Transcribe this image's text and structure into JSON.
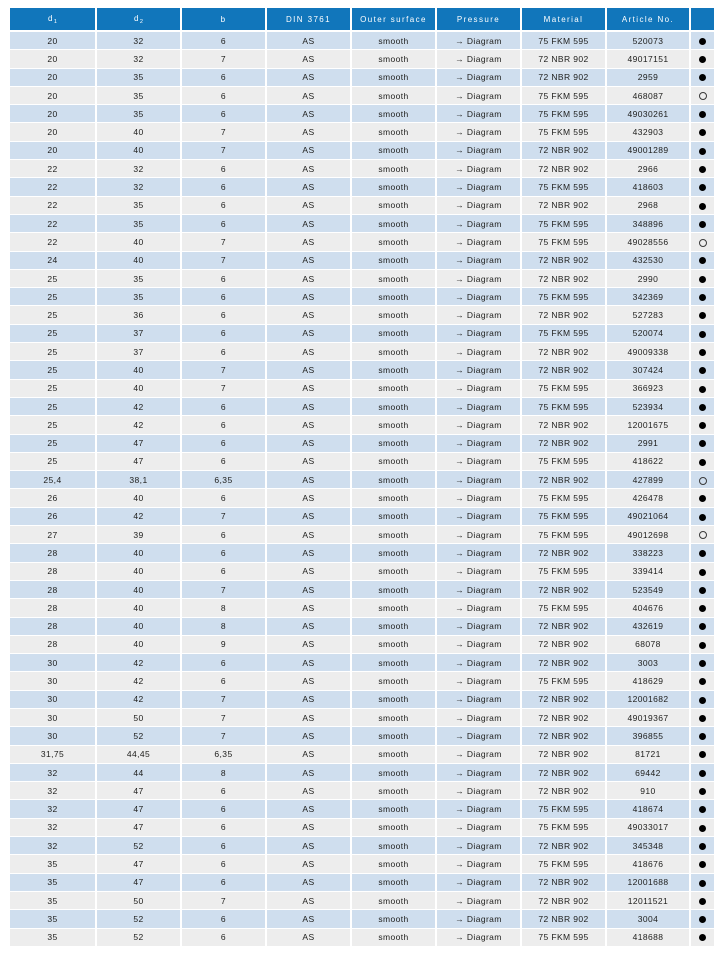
{
  "colors": {
    "page_bg": "#ffffff",
    "header_bg": "#1176bb",
    "header_text": "#ffffff",
    "row_blue": "#cfdeee",
    "row_gray": "#ededed",
    "cell_text": "#1d1d1b",
    "dot": "#000000"
  },
  "table": {
    "columns": [
      {
        "id": "d1",
        "text": "d",
        "sub": "1"
      },
      {
        "id": "d2",
        "text": "d",
        "sub": "2"
      },
      {
        "id": "b",
        "text": "b",
        "sub": ""
      },
      {
        "id": "din",
        "text": "DIN 3761",
        "sub": ""
      },
      {
        "id": "surface",
        "text": "Outer surface",
        "sub": ""
      },
      {
        "id": "pressure",
        "text": "Pressure",
        "sub": ""
      },
      {
        "id": "material",
        "text": "Material",
        "sub": ""
      },
      {
        "id": "article",
        "text": "Article No.",
        "sub": ""
      },
      {
        "id": "availability",
        "text": "",
        "sub": ""
      }
    ],
    "status_glyphs": {
      "filled": "●",
      "empty": "○"
    },
    "rows": [
      [
        "20",
        "32",
        "6",
        "AS",
        "smooth",
        "→ Diagram",
        "75 FKM 595",
        "520073",
        "filled"
      ],
      [
        "20",
        "32",
        "7",
        "AS",
        "smooth",
        "→ Diagram",
        "72 NBR 902",
        "49017151",
        "filled"
      ],
      [
        "20",
        "35",
        "6",
        "AS",
        "smooth",
        "→ Diagram",
        "72 NBR 902",
        "2959",
        "filled"
      ],
      [
        "20",
        "35",
        "6",
        "AS",
        "smooth",
        "→ Diagram",
        "75 FKM 595",
        "468087",
        "empty"
      ],
      [
        "20",
        "35",
        "6",
        "AS",
        "smooth",
        "→ Diagram",
        "75 FKM 595",
        "49030261",
        "filled"
      ],
      [
        "20",
        "40",
        "7",
        "AS",
        "smooth",
        "→ Diagram",
        "75 FKM 595",
        "432903",
        "filled"
      ],
      [
        "20",
        "40",
        "7",
        "AS",
        "smooth",
        "→ Diagram",
        "72 NBR 902",
        "49001289",
        "filled"
      ],
      [
        "22",
        "32",
        "6",
        "AS",
        "smooth",
        "→ Diagram",
        "72 NBR 902",
        "2966",
        "filled"
      ],
      [
        "22",
        "32",
        "6",
        "AS",
        "smooth",
        "→ Diagram",
        "75 FKM 595",
        "418603",
        "filled"
      ],
      [
        "22",
        "35",
        "6",
        "AS",
        "smooth",
        "→ Diagram",
        "72 NBR 902",
        "2968",
        "filled"
      ],
      [
        "22",
        "35",
        "6",
        "AS",
        "smooth",
        "→ Diagram",
        "75 FKM 595",
        "348896",
        "filled"
      ],
      [
        "22",
        "40",
        "7",
        "AS",
        "smooth",
        "→ Diagram",
        "75 FKM 595",
        "49028556",
        "empty"
      ],
      [
        "24",
        "40",
        "7",
        "AS",
        "smooth",
        "→ Diagram",
        "72 NBR 902",
        "432530",
        "filled"
      ],
      [
        "25",
        "35",
        "6",
        "AS",
        "smooth",
        "→ Diagram",
        "72 NBR 902",
        "2990",
        "filled"
      ],
      [
        "25",
        "35",
        "6",
        "AS",
        "smooth",
        "→ Diagram",
        "75 FKM 595",
        "342369",
        "filled"
      ],
      [
        "25",
        "36",
        "6",
        "AS",
        "smooth",
        "→ Diagram",
        "72 NBR 902",
        "527283",
        "filled"
      ],
      [
        "25",
        "37",
        "6",
        "AS",
        "smooth",
        "→ Diagram",
        "75 FKM 595",
        "520074",
        "filled"
      ],
      [
        "25",
        "37",
        "6",
        "AS",
        "smooth",
        "→ Diagram",
        "72 NBR 902",
        "49009338",
        "filled"
      ],
      [
        "25",
        "40",
        "7",
        "AS",
        "smooth",
        "→ Diagram",
        "72 NBR 902",
        "307424",
        "filled"
      ],
      [
        "25",
        "40",
        "7",
        "AS",
        "smooth",
        "→ Diagram",
        "75 FKM 595",
        "366923",
        "filled"
      ],
      [
        "25",
        "42",
        "6",
        "AS",
        "smooth",
        "→ Diagram",
        "75 FKM 595",
        "523934",
        "filled"
      ],
      [
        "25",
        "42",
        "6",
        "AS",
        "smooth",
        "→ Diagram",
        "72 NBR 902",
        "12001675",
        "filled"
      ],
      [
        "25",
        "47",
        "6",
        "AS",
        "smooth",
        "→ Diagram",
        "72 NBR 902",
        "2991",
        "filled"
      ],
      [
        "25",
        "47",
        "6",
        "AS",
        "smooth",
        "→ Diagram",
        "75 FKM 595",
        "418622",
        "filled"
      ],
      [
        "25,4",
        "38,1",
        "6,35",
        "AS",
        "smooth",
        "→ Diagram",
        "72 NBR 902",
        "427899",
        "empty"
      ],
      [
        "26",
        "40",
        "6",
        "AS",
        "smooth",
        "→ Diagram",
        "75 FKM 595",
        "426478",
        "filled"
      ],
      [
        "26",
        "42",
        "7",
        "AS",
        "smooth",
        "→ Diagram",
        "75 FKM 595",
        "49021064",
        "filled"
      ],
      [
        "27",
        "39",
        "6",
        "AS",
        "smooth",
        "→ Diagram",
        "75 FKM 595",
        "49012698",
        "empty"
      ],
      [
        "28",
        "40",
        "6",
        "AS",
        "smooth",
        "→ Diagram",
        "72 NBR 902",
        "338223",
        "filled"
      ],
      [
        "28",
        "40",
        "6",
        "AS",
        "smooth",
        "→ Diagram",
        "75 FKM 595",
        "339414",
        "filled"
      ],
      [
        "28",
        "40",
        "7",
        "AS",
        "smooth",
        "→ Diagram",
        "72 NBR 902",
        "523549",
        "filled"
      ],
      [
        "28",
        "40",
        "8",
        "AS",
        "smooth",
        "→ Diagram",
        "75 FKM 595",
        "404676",
        "filled"
      ],
      [
        "28",
        "40",
        "8",
        "AS",
        "smooth",
        "→ Diagram",
        "72 NBR 902",
        "432619",
        "filled"
      ],
      [
        "28",
        "40",
        "9",
        "AS",
        "smooth",
        "→ Diagram",
        "72 NBR 902",
        "68078",
        "filled"
      ],
      [
        "30",
        "42",
        "6",
        "AS",
        "smooth",
        "→ Diagram",
        "72 NBR 902",
        "3003",
        "filled"
      ],
      [
        "30",
        "42",
        "6",
        "AS",
        "smooth",
        "→ Diagram",
        "75 FKM 595",
        "418629",
        "filled"
      ],
      [
        "30",
        "42",
        "7",
        "AS",
        "smooth",
        "→ Diagram",
        "72 NBR 902",
        "12001682",
        "filled"
      ],
      [
        "30",
        "50",
        "7",
        "AS",
        "smooth",
        "→ Diagram",
        "72 NBR 902",
        "49019367",
        "filled"
      ],
      [
        "30",
        "52",
        "7",
        "AS",
        "smooth",
        "→ Diagram",
        "72 NBR 902",
        "396855",
        "filled"
      ],
      [
        "31,75",
        "44,45",
        "6,35",
        "AS",
        "smooth",
        "→ Diagram",
        "72 NBR 902",
        "81721",
        "filled"
      ],
      [
        "32",
        "44",
        "8",
        "AS",
        "smooth",
        "→ Diagram",
        "72 NBR 902",
        "69442",
        "filled"
      ],
      [
        "32",
        "47",
        "6",
        "AS",
        "smooth",
        "→ Diagram",
        "72 NBR 902",
        "910",
        "filled"
      ],
      [
        "32",
        "47",
        "6",
        "AS",
        "smooth",
        "→ Diagram",
        "75 FKM 595",
        "418674",
        "filled"
      ],
      [
        "32",
        "47",
        "6",
        "AS",
        "smooth",
        "→ Diagram",
        "75 FKM 595",
        "49033017",
        "filled"
      ],
      [
        "32",
        "52",
        "6",
        "AS",
        "smooth",
        "→ Diagram",
        "72 NBR 902",
        "345348",
        "filled"
      ],
      [
        "35",
        "47",
        "6",
        "AS",
        "smooth",
        "→ Diagram",
        "75 FKM 595",
        "418676",
        "filled"
      ],
      [
        "35",
        "47",
        "6",
        "AS",
        "smooth",
        "→ Diagram",
        "72 NBR 902",
        "12001688",
        "filled"
      ],
      [
        "35",
        "50",
        "7",
        "AS",
        "smooth",
        "→ Diagram",
        "72 NBR 902",
        "12011521",
        "filled"
      ],
      [
        "35",
        "52",
        "6",
        "AS",
        "smooth",
        "→ Diagram",
        "72 NBR 902",
        "3004",
        "filled"
      ],
      [
        "35",
        "52",
        "6",
        "AS",
        "smooth",
        "→ Diagram",
        "75 FKM 595",
        "418688",
        "filled"
      ]
    ]
  }
}
